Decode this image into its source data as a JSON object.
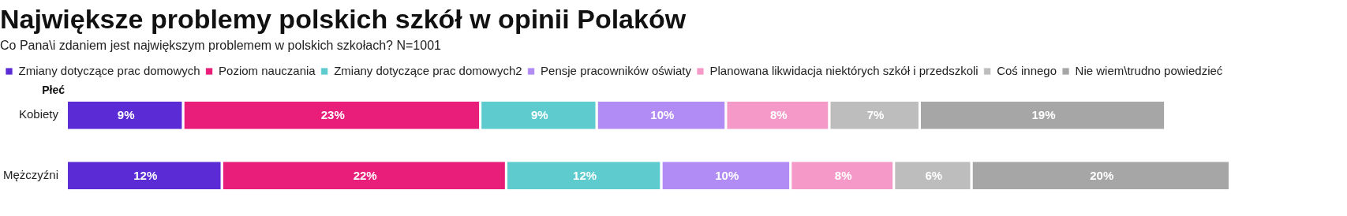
{
  "chart_data": {
    "type": "bar",
    "orientation": "horizontal",
    "stacked": true,
    "title": "Największe problemy polskich szkół w opinii Polaków",
    "subtitle": "Co Pana\\i zdaniem jest największym problemem w polskich szkołach? N=1001",
    "ylabel": "Płeć",
    "categories": [
      "Kobiety",
      "Mężczyźni"
    ],
    "series": [
      {
        "name": "Zmiany dotyczące prac domowych",
        "color": "#5b2bd6",
        "values": [
          9,
          12
        ],
        "value_labels": [
          "9%",
          "12%"
        ]
      },
      {
        "name": "Poziom nauczania",
        "color": "#e91e7b",
        "values": [
          23,
          22
        ],
        "value_labels": [
          "23%",
          "22%"
        ]
      },
      {
        "name": "Zmiany dotyczące prac domowych2",
        "color": "#5ecbcf",
        "values": [
          9,
          12
        ],
        "value_labels": [
          "9%",
          "12%"
        ]
      },
      {
        "name": "Pensje pracowników oświaty",
        "color": "#b18cf5",
        "values": [
          10,
          10
        ],
        "value_labels": [
          "10%",
          "10%"
        ]
      },
      {
        "name": "Planowana likwidacja niektórych szkół i przedszkoli",
        "color": "#f59ac8",
        "values": [
          8,
          8
        ],
        "value_labels": [
          "8%",
          "8%"
        ]
      },
      {
        "name": "Coś innego",
        "color": "#bdbdbd",
        "values": [
          7,
          6
        ],
        "value_labels": [
          "7%",
          "6%"
        ]
      },
      {
        "name": "Nie wiem\\trudno powiedzieć",
        "color": "#a6a6a6",
        "values": [
          19,
          20
        ],
        "value_labels": [
          "19%",
          "20%"
        ]
      }
    ],
    "legend": "top left",
    "tick_labels": "y"
  }
}
